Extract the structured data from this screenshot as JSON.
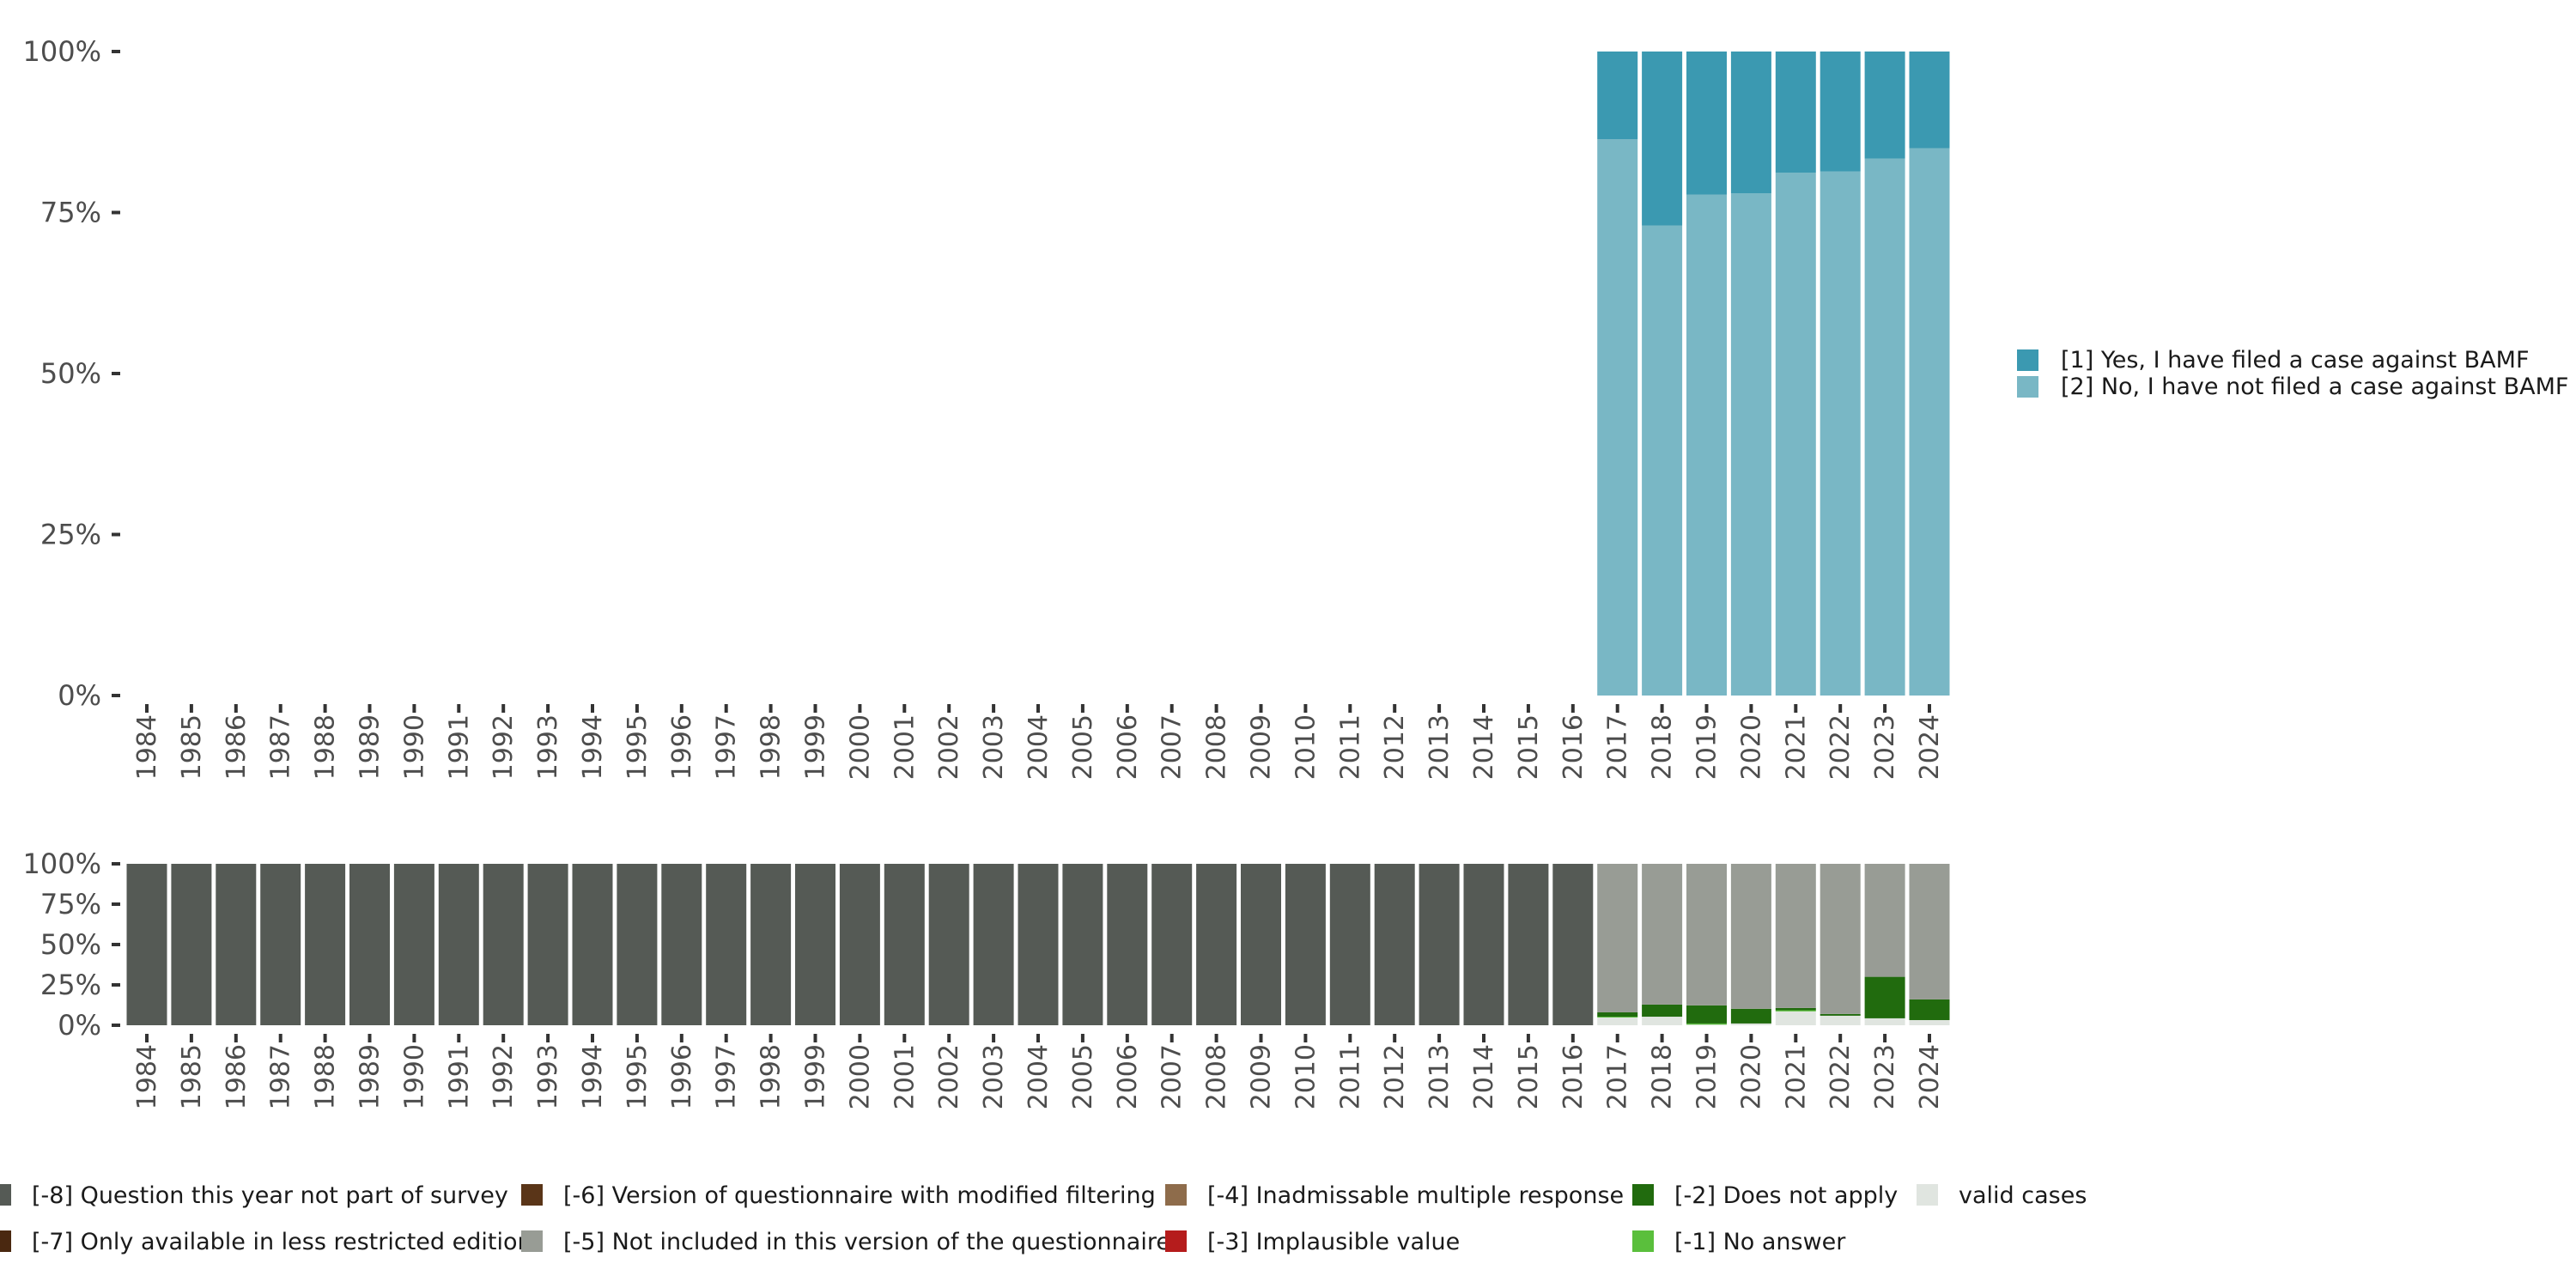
{
  "chart_data": [
    {
      "type": "bar",
      "stacked": true,
      "title": "",
      "xlabel": "",
      "ylabel": "",
      "ylim": [
        0,
        100
      ],
      "yticks": [
        "0%",
        "25%",
        "50%",
        "75%",
        "100%"
      ],
      "categories": [
        "1984",
        "1985",
        "1986",
        "1987",
        "1988",
        "1989",
        "1990",
        "1991",
        "1992",
        "1993",
        "1994",
        "1995",
        "1996",
        "1997",
        "1998",
        "1999",
        "2000",
        "2001",
        "2002",
        "2003",
        "2004",
        "2005",
        "2006",
        "2007",
        "2008",
        "2009",
        "2010",
        "2011",
        "2012",
        "2013",
        "2014",
        "2015",
        "2016",
        "2017",
        "2018",
        "2019",
        "2020",
        "2021",
        "2022",
        "2023",
        "2024"
      ],
      "legend_position": "right",
      "series": [
        {
          "name": "[2] No, I have not filed a case against BAMF",
          "color": "#79b7c5",
          "values": [
            null,
            null,
            null,
            null,
            null,
            null,
            null,
            null,
            null,
            null,
            null,
            null,
            null,
            null,
            null,
            null,
            null,
            null,
            null,
            null,
            null,
            null,
            null,
            null,
            null,
            null,
            null,
            null,
            null,
            null,
            null,
            null,
            null,
            86.4,
            73.0,
            77.8,
            78.0,
            81.2,
            81.4,
            83.4,
            85.0
          ]
        },
        {
          "name": "[1] Yes, I have filed a case against BAMF",
          "color": "#3b99b1",
          "values": [
            null,
            null,
            null,
            null,
            null,
            null,
            null,
            null,
            null,
            null,
            null,
            null,
            null,
            null,
            null,
            null,
            null,
            null,
            null,
            null,
            null,
            null,
            null,
            null,
            null,
            null,
            null,
            null,
            null,
            null,
            null,
            null,
            null,
            13.6,
            27.0,
            22.2,
            22.0,
            18.8,
            18.6,
            16.6,
            15.0
          ]
        }
      ],
      "legend_order": [
        1,
        0
      ]
    },
    {
      "type": "bar",
      "stacked": true,
      "title": "",
      "xlabel": "",
      "ylabel": "",
      "ylim": [
        0,
        100
      ],
      "yticks": [
        "0%",
        "25%",
        "50%",
        "75%",
        "100%"
      ],
      "categories": [
        "1984",
        "1985",
        "1986",
        "1987",
        "1988",
        "1989",
        "1990",
        "1991",
        "1992",
        "1993",
        "1994",
        "1995",
        "1996",
        "1997",
        "1998",
        "1999",
        "2000",
        "2001",
        "2002",
        "2003",
        "2004",
        "2005",
        "2006",
        "2007",
        "2008",
        "2009",
        "2010",
        "2011",
        "2012",
        "2013",
        "2014",
        "2015",
        "2016",
        "2017",
        "2018",
        "2019",
        "2020",
        "2021",
        "2022",
        "2023",
        "2024"
      ],
      "legend_position": "bottom",
      "series": [
        {
          "name": "valid cases",
          "color": "#e0e5e0",
          "values": [
            0,
            0,
            0,
            0,
            0,
            0,
            0,
            0,
            0,
            0,
            0,
            0,
            0,
            0,
            0,
            0,
            0,
            0,
            0,
            0,
            0,
            0,
            0,
            0,
            0,
            0,
            0,
            0,
            0,
            0,
            0,
            0,
            0,
            4.8,
            5.3,
            0.4,
            1.1,
            8.6,
            5.9,
            4.3,
            3.2
          ]
        },
        {
          "name": "[-1] No answer",
          "color": "#5abf3c",
          "values": [
            0,
            0,
            0,
            0,
            0,
            0,
            0,
            0,
            0,
            0,
            0,
            0,
            0,
            0,
            0,
            0,
            0,
            0,
            0,
            0,
            0,
            0,
            0,
            0,
            0,
            0,
            0,
            0,
            0,
            0,
            0,
            0,
            0,
            0.5,
            0,
            0.7,
            0,
            0.7,
            0,
            0,
            0
          ]
        },
        {
          "name": "[-2] Does not apply",
          "color": "#216b0e",
          "values": [
            0,
            0,
            0,
            0,
            0,
            0,
            0,
            0,
            0,
            0,
            0,
            0,
            0,
            0,
            0,
            0,
            0,
            0,
            0,
            0,
            0,
            0,
            0,
            0,
            0,
            0,
            0,
            0,
            0,
            0,
            0,
            0,
            0,
            2.7,
            7.5,
            11.2,
            9.1,
            1.4,
            1.1,
            25.7,
            12.8
          ]
        },
        {
          "name": "[-3] Implausible value",
          "color": "#b51c1c",
          "values": [
            0,
            0,
            0,
            0,
            0,
            0,
            0,
            0,
            0,
            0,
            0,
            0,
            0,
            0,
            0,
            0,
            0,
            0,
            0,
            0,
            0,
            0,
            0,
            0,
            0,
            0,
            0,
            0,
            0,
            0,
            0,
            0,
            0,
            0,
            0,
            0,
            0,
            0,
            0,
            0,
            0
          ]
        },
        {
          "name": "[-4] Inadmissable multiple response",
          "color": "#8e6c4b",
          "values": [
            0,
            0,
            0,
            0,
            0,
            0,
            0,
            0,
            0,
            0,
            0,
            0,
            0,
            0,
            0,
            0,
            0,
            0,
            0,
            0,
            0,
            0,
            0,
            0,
            0,
            0,
            0,
            0,
            0,
            0,
            0,
            0,
            0,
            0,
            0,
            0,
            0,
            0,
            0,
            0,
            0
          ]
        },
        {
          "name": "[-5] Not included in this version of the questionnaire",
          "color": "#989c95",
          "values": [
            0,
            0,
            0,
            0,
            0,
            0,
            0,
            0,
            0,
            0,
            0,
            0,
            0,
            0,
            0,
            0,
            0,
            0,
            0,
            0,
            0,
            0,
            0,
            0,
            0,
            0,
            0,
            0,
            0,
            0,
            0,
            0,
            0,
            92.0,
            87.2,
            87.7,
            89.8,
            89.3,
            93.0,
            70.0,
            84.0
          ]
        },
        {
          "name": "[-6] Version of questionnaire with modified filtering",
          "color": "#5a3518",
          "values": [
            0,
            0,
            0,
            0,
            0,
            0,
            0,
            0,
            0,
            0,
            0,
            0,
            0,
            0,
            0,
            0,
            0,
            0,
            0,
            0,
            0,
            0,
            0,
            0,
            0,
            0,
            0,
            0,
            0,
            0,
            0,
            0,
            0,
            0,
            0,
            0,
            0,
            0,
            0,
            0,
            0
          ]
        },
        {
          "name": "[-7] Only available in less restricted edition",
          "color": "#4a2810",
          "values": [
            0,
            0,
            0,
            0,
            0,
            0,
            0,
            0,
            0,
            0,
            0,
            0,
            0,
            0,
            0,
            0,
            0,
            0,
            0,
            0,
            0,
            0,
            0,
            0,
            0,
            0,
            0,
            0,
            0,
            0,
            0,
            0,
            0,
            0,
            0,
            0,
            0,
            0,
            0,
            0,
            0
          ]
        },
        {
          "name": "[-8] Question this year not part of survey",
          "color": "#555a55",
          "values": [
            100,
            100,
            100,
            100,
            100,
            100,
            100,
            100,
            100,
            100,
            100,
            100,
            100,
            100,
            100,
            100,
            100,
            100,
            100,
            100,
            100,
            100,
            100,
            100,
            100,
            100,
            100,
            100,
            100,
            100,
            100,
            100,
            100,
            0,
            0,
            0,
            0,
            0,
            0,
            0,
            0
          ]
        }
      ],
      "legend_order": [
        8,
        7,
        6,
        5,
        4,
        3,
        2,
        1,
        0
      ]
    }
  ]
}
